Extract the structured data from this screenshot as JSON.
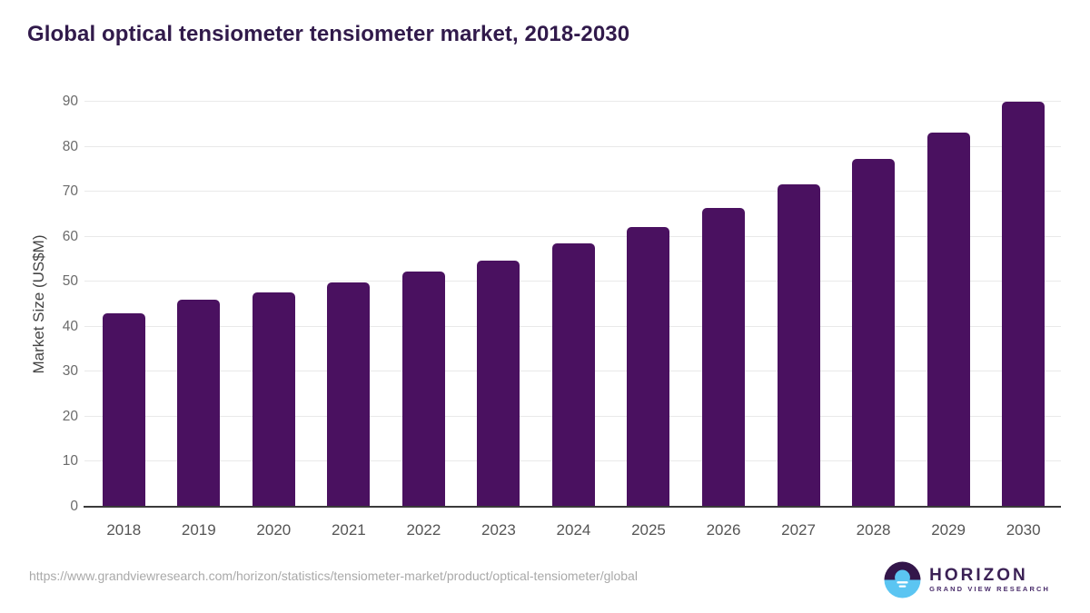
{
  "page": {
    "title": "Global optical tensiometer tensiometer market, 2018-2030",
    "source_url": "https://www.grandviewresearch.com/horizon/statistics/tensiometer-market/product/optical-tensiometer/global"
  },
  "chart_data": {
    "type": "bar",
    "title": "Global optical tensiometer tensiometer market, 2018-2030",
    "categories": [
      "2018",
      "2019",
      "2020",
      "2021",
      "2022",
      "2023",
      "2024",
      "2025",
      "2026",
      "2027",
      "2028",
      "2029",
      "2030"
    ],
    "values": [
      43.0,
      46.0,
      47.6,
      49.8,
      52.2,
      54.7,
      58.5,
      62.2,
      66.3,
      71.6,
      77.3,
      83.2,
      90.0
    ],
    "xlabel": "",
    "ylabel": "Market Size (US$M)",
    "ylim": [
      0,
      90
    ],
    "yticks": [
      0,
      10,
      20,
      30,
      40,
      50,
      60,
      70,
      80,
      90
    ],
    "grid": true,
    "legend": "none",
    "bar_color": "#4a1160",
    "gridline_color": "#e9e9e9",
    "axis_line_color": "#3a3a3a"
  },
  "branding": {
    "logo_name": "HORIZON",
    "logo_subtext": "GRAND VIEW RESEARCH",
    "logo_dark": "#33164a",
    "logo_blue": "#5bc5f2",
    "logo_line_color": "#ffffff"
  }
}
